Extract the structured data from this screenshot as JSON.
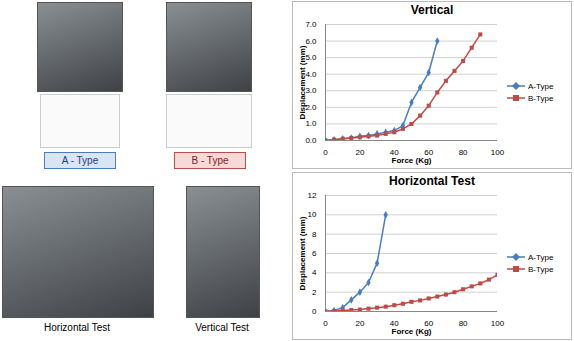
{
  "photo_labels": {
    "a_type": "A - Type",
    "b_type": "B - Type",
    "horizontal": "Horizontal Test",
    "vertical": "Vertical Test"
  },
  "chart_data": [
    {
      "type": "line",
      "title": "Vertical",
      "xlabel": "Force (Kg)",
      "ylabel": "Displacement (mm)",
      "x": [
        0,
        5,
        10,
        15,
        20,
        25,
        30,
        35,
        40,
        45,
        50,
        55,
        60,
        65,
        70,
        75,
        80,
        85,
        90
      ],
      "series": [
        {
          "name": "A-Type",
          "color": "#4a7ebb",
          "marker": "diamond",
          "line_style": "solid",
          "values": [
            0,
            0.05,
            0.1,
            0.15,
            0.25,
            0.3,
            0.4,
            0.5,
            0.6,
            0.9,
            2.3,
            3.2,
            4.1,
            6.0,
            null,
            null,
            null,
            null,
            null
          ]
        },
        {
          "name": "B-Type",
          "color": "#be4b48",
          "marker": "square",
          "line_style": "solid",
          "values": [
            0,
            0.05,
            0.1,
            0.15,
            0.2,
            0.25,
            0.3,
            0.4,
            0.5,
            0.7,
            1.0,
            1.5,
            2.1,
            2.9,
            3.6,
            4.2,
            4.8,
            5.6,
            6.4
          ]
        }
      ],
      "xlim": [
        0,
        100
      ],
      "xticks": [
        0,
        20,
        40,
        60,
        80,
        100
      ],
      "ylim": [
        0,
        7
      ],
      "yticks": [
        0,
        1,
        2,
        3,
        4,
        5,
        6,
        7
      ],
      "grid": true,
      "legend": "right"
    },
    {
      "type": "line",
      "title": "Horizontal Test",
      "xlabel": "Force (Kg)",
      "ylabel": "Displacement (mm)",
      "x": [
        0,
        5,
        10,
        15,
        20,
        25,
        30,
        35,
        40,
        45,
        50,
        55,
        60,
        65,
        70,
        75,
        80,
        85,
        90,
        95,
        100
      ],
      "series": [
        {
          "name": "A-Type",
          "color": "#4a7ebb",
          "marker": "diamond",
          "line_style": "solid",
          "values": [
            0,
            0.1,
            0.4,
            1.2,
            2.0,
            3.0,
            5.0,
            10.0,
            null,
            null,
            null,
            null,
            null,
            null,
            null,
            null,
            null,
            null,
            null,
            null,
            null
          ]
        },
        {
          "name": "B-Type",
          "color": "#be4b48",
          "marker": "square",
          "line_style": "solid",
          "values": [
            0,
            0.05,
            0.1,
            0.15,
            0.2,
            0.3,
            0.4,
            0.5,
            0.65,
            0.8,
            1.0,
            1.15,
            1.35,
            1.55,
            1.75,
            2.0,
            2.3,
            2.6,
            2.9,
            3.3,
            3.8
          ]
        }
      ],
      "xlim": [
        0,
        100
      ],
      "xticks": [
        0,
        20,
        40,
        60,
        80,
        100
      ],
      "ylim": [
        0,
        12
      ],
      "yticks": [
        0,
        2,
        4,
        6,
        8,
        10,
        12
      ],
      "grid": true,
      "legend": "right"
    }
  ]
}
